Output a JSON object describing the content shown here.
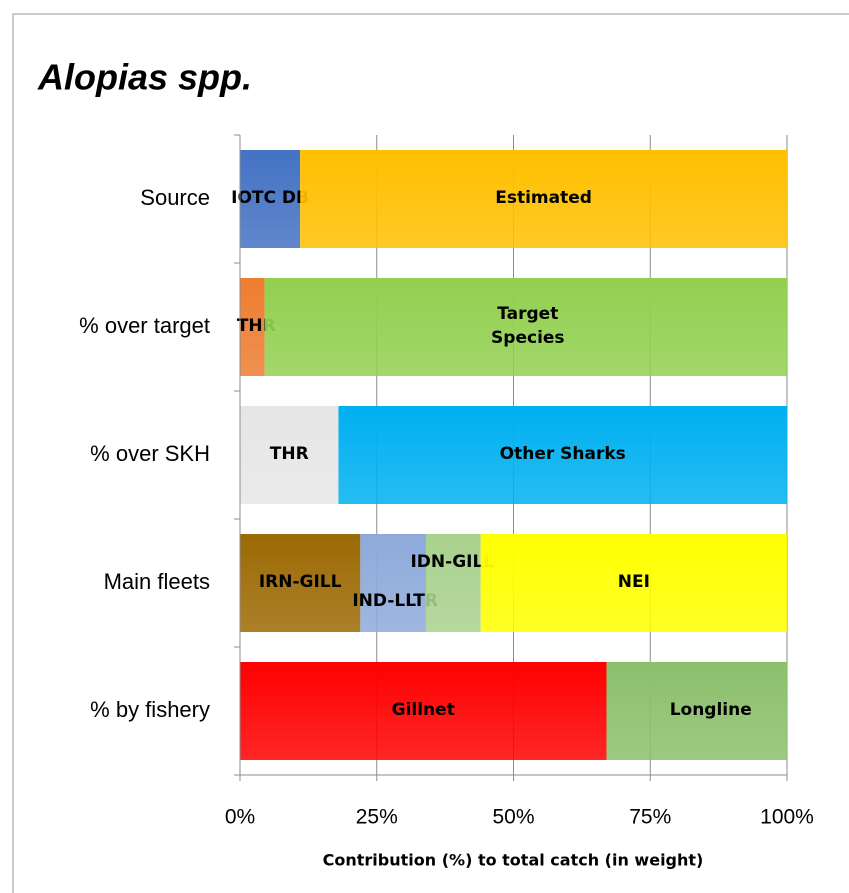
{
  "chart_data": {
    "type": "stacked-bar-horizontal",
    "title": "Alopias spp.",
    "x_label": "Contribution  (%) to total catch (in weight)",
    "categories": [
      "Source",
      "% over target",
      "% over SKH",
      "Main fleets",
      "% by fishery"
    ],
    "bars": [
      {
        "segments": [
          {
            "name": "IOTC DB",
            "color": "#4472c4",
            "value": 11
          },
          {
            "name": "Estimated",
            "color": "#ffc000",
            "value": 89
          }
        ]
      },
      {
        "segments": [
          {
            "name": "THR",
            "color": "#ed7d31",
            "value": 4.5
          },
          {
            "name": "Target Species",
            "color": "#92d050",
            "value": 95.5
          }
        ]
      },
      {
        "segments": [
          {
            "name": "THR",
            "color": "#e7e6e6",
            "value": 18
          },
          {
            "name": "Other Sharks",
            "color": "#00b0f0",
            "value": 82
          }
        ]
      },
      {
        "segments": [
          {
            "name": "IRN-GILL",
            "color": "#9c6a04",
            "value": 22
          },
          {
            "name": "IND-LLTR",
            "color": "#8eaadb",
            "value": 12
          },
          {
            "name": "IDN-GILL",
            "color": "#a9d18e",
            "value": 10
          },
          {
            "name": "NEI",
            "color": "#ffff00",
            "value": 56
          }
        ]
      },
      {
        "segments": [
          {
            "name": "Gillnet",
            "color": "#ff0000",
            "value": 67
          },
          {
            "name": "Longline",
            "color": "#8cc06c",
            "value": 33
          }
        ]
      }
    ],
    "xlim": [
      0,
      100
    ],
    "xticks": [
      {
        "value": 0,
        "label": "0%"
      },
      {
        "value": 25,
        "label": "25%"
      },
      {
        "value": 50,
        "label": "50%"
      },
      {
        "value": 75,
        "label": "75%"
      },
      {
        "value": 100,
        "label": "100%"
      }
    ],
    "grid": true
  }
}
